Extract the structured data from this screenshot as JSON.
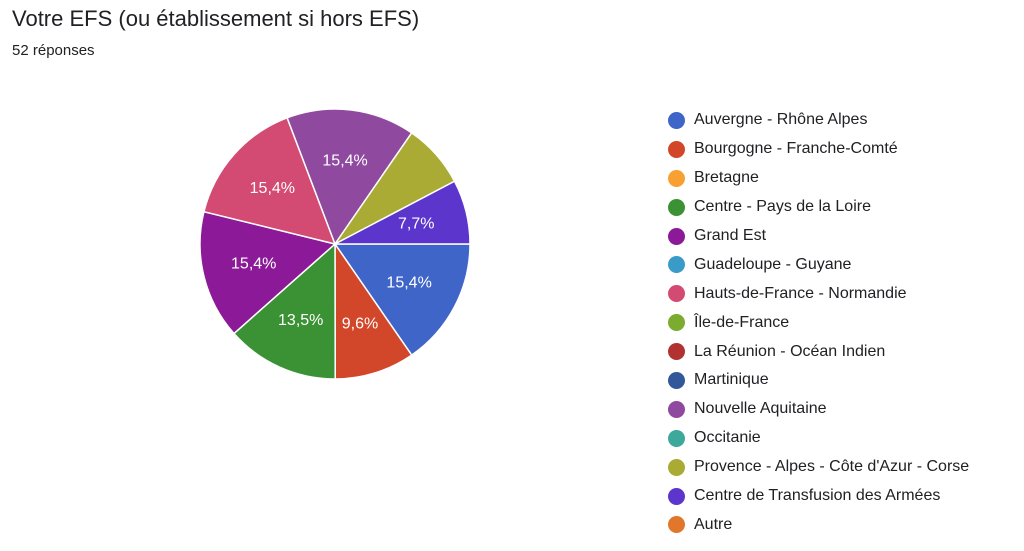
{
  "header": {
    "title": "Votre EFS (ou établissement si hors EFS)",
    "responses": "52 réponses"
  },
  "chart_data": {
    "type": "pie",
    "title": "Votre EFS (ou établissement si hors EFS)",
    "legend_position": "right",
    "start_angle_deg": 90,
    "direction": "clockwise",
    "categories": [
      "Auvergne - Rhône Alpes",
      "Bourgogne - Franche-Comté",
      "Bretagne",
      "Centre - Pays de la Loire",
      "Grand Est",
      "Guadeloupe - Guyane",
      "Hauts-de-France - Normandie",
      "Île-de-France",
      "La Réunion - Océan Indien",
      "Martinique",
      "Nouvelle Aquitaine",
      "Occitanie",
      "Provence - Alpes - Côte d'Azur - Corse",
      "Centre de Transfusion des Armées",
      "Autre"
    ],
    "values": [
      15.4,
      9.6,
      0,
      13.5,
      15.4,
      0,
      15.4,
      0,
      0,
      0,
      15.4,
      0,
      7.7,
      7.7,
      0
    ],
    "labels": [
      "15,4%",
      "9,6%",
      "",
      "13,5%",
      "15,4%",
      "",
      "15,4%",
      "",
      "",
      "",
      "15,4%",
      "",
      "",
      "7,7%",
      ""
    ],
    "colors": [
      "#3f65c8",
      "#d2462a",
      "#f7a132",
      "#3b9234",
      "#8c1a98",
      "#3a9bc9",
      "#d34b72",
      "#7bab2f",
      "#b23232",
      "#33589a",
      "#8f4a9f",
      "#3ea89a",
      "#a9ab35",
      "#5b35cc",
      "#e0772b"
    ]
  }
}
